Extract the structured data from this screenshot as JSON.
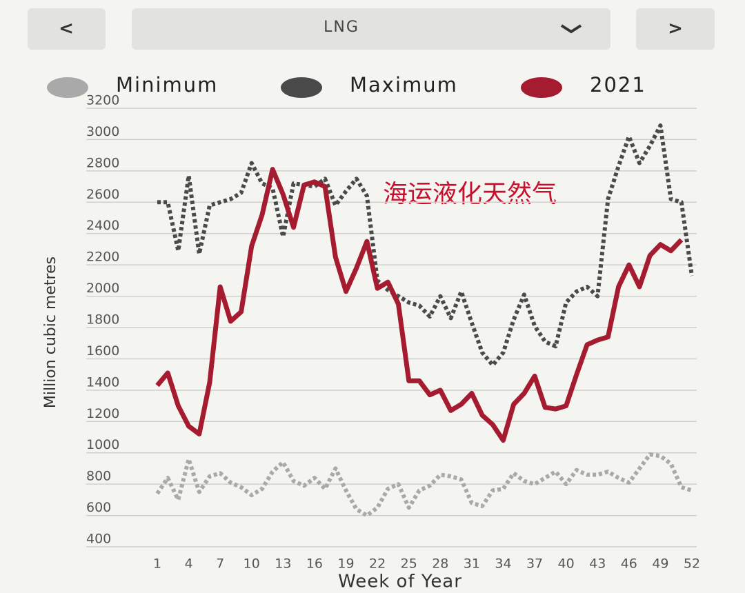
{
  "ui": {
    "prev_button": "<",
    "dropdown": "LNG",
    "next_button": ">"
  },
  "chart_data": {
    "type": "line",
    "annotation": "海运液化天然气",
    "y_label": "Million cubic metres",
    "x_label": "Week of Year",
    "x": [
      1,
      2,
      3,
      4,
      5,
      6,
      7,
      8,
      9,
      10,
      11,
      12,
      13,
      14,
      15,
      16,
      17,
      18,
      19,
      20,
      21,
      22,
      23,
      24,
      25,
      26,
      27,
      28,
      29,
      30,
      31,
      32,
      33,
      34,
      35,
      36,
      37,
      38,
      39,
      40,
      41,
      42,
      43,
      44,
      45,
      46,
      47,
      48,
      49,
      50,
      51,
      52
    ],
    "xlim": [
      1,
      52
    ],
    "xticks": [
      1,
      4,
      7,
      10,
      13,
      16,
      19,
      22,
      25,
      28,
      31,
      34,
      37,
      40,
      43,
      46,
      49,
      52
    ],
    "ylim": [
      400,
      3200
    ],
    "yticks": [
      400,
      600,
      800,
      1000,
      1200,
      1400,
      1600,
      1800,
      2000,
      2200,
      2400,
      2600,
      2800,
      3000,
      3200
    ],
    "grid": true,
    "series": [
      {
        "name": "Minimum",
        "color": "#a9a9a9",
        "style": "dotted",
        "values": [
          740,
          840,
          700,
          960,
          750,
          850,
          870,
          810,
          780,
          730,
          770,
          880,
          940,
          820,
          790,
          840,
          770,
          900,
          760,
          640,
          600,
          650,
          770,
          800,
          650,
          760,
          790,
          860,
          850,
          830,
          680,
          660,
          760,
          770,
          870,
          820,
          800,
          840,
          880,
          800,
          890,
          860,
          860,
          880,
          840,
          810,
          900,
          990,
          980,
          930,
          780,
          760
        ]
      },
      {
        "name": "Maximum",
        "color": "#4a4a4a",
        "style": "dotted",
        "values": [
          2600,
          2600,
          2290,
          2770,
          2270,
          2580,
          2600,
          2620,
          2660,
          2850,
          2720,
          2690,
          2380,
          2720,
          2710,
          2700,
          2750,
          2580,
          2670,
          2750,
          2640,
          2100,
          2040,
          2000,
          1960,
          1940,
          1870,
          2000,
          1860,
          2030,
          1830,
          1640,
          1560,
          1640,
          1850,
          2010,
          1810,
          1710,
          1680,
          1960,
          2030,
          2060,
          2000,
          2620,
          2830,
          3020,
          2850,
          2960,
          3090,
          2620,
          2600,
          2130
        ]
      },
      {
        "name": "2021",
        "color": "#a51c30",
        "style": "solid",
        "values": [
          1430,
          1510,
          1300,
          1170,
          1120,
          1450,
          2060,
          1840,
          1900,
          2320,
          2520,
          2810,
          2650,
          2440,
          2710,
          2730,
          2700,
          2250,
          2030,
          2180,
          2350,
          2050,
          2090,
          1950,
          1460,
          1460,
          1370,
          1400,
          1270,
          1310,
          1380,
          1240,
          1180,
          1080,
          1310,
          1380,
          1490,
          1290,
          1280,
          1300,
          1500,
          1690,
          1720,
          1740,
          2060,
          2200,
          2060,
          2260,
          2330,
          2290,
          2360,
          null
        ]
      }
    ]
  }
}
